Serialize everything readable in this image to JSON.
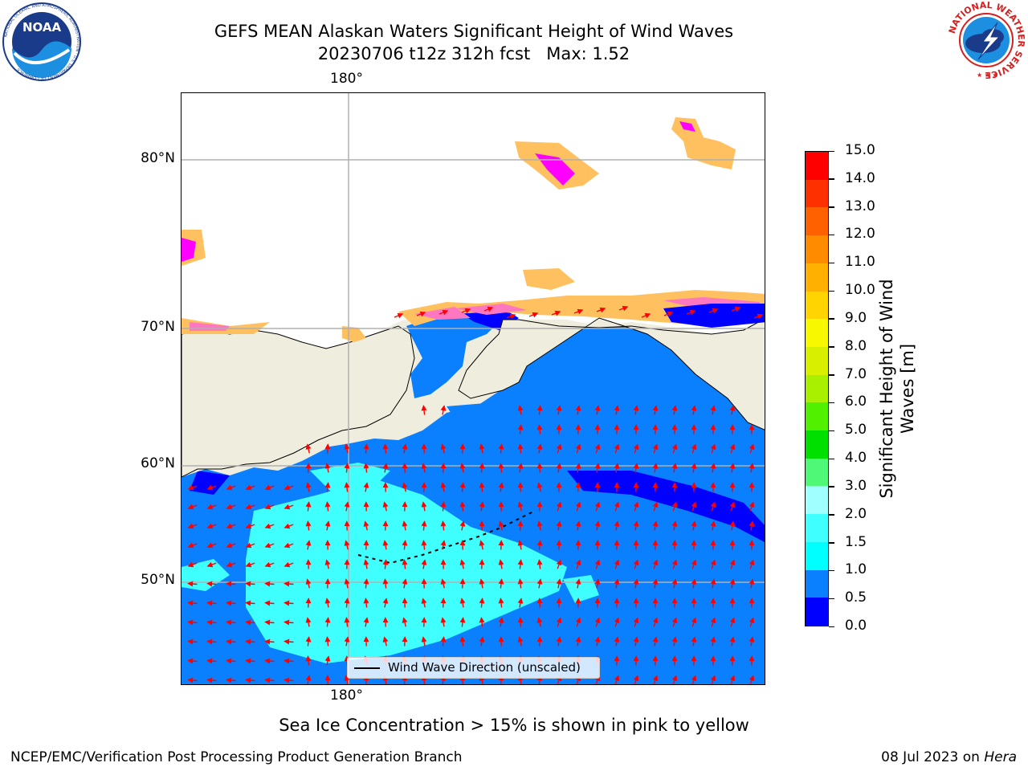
{
  "title": {
    "line1": "GEFS MEAN Alaskan Waters Significant Height of Wind Waves",
    "line2": "20230706 t12z 312h fcst   Max: 1.52"
  },
  "logos": {
    "left": {
      "name": "NOAA",
      "icon": "noaa-logo-icon",
      "wordmark": "NOAA",
      "ring_text": "NATIONAL OCEANIC AND ATMOSPHERIC ADMINISTRATION · U.S. DEPARTMENT OF COMMERCE"
    },
    "right": {
      "name": "National Weather Service",
      "icon": "nws-logo-icon",
      "ring_text": "NATIONAL WEATHER SERVICE"
    }
  },
  "map": {
    "top_lon_label": "180°",
    "bottom_lon_label": "180°",
    "lat_labels": [
      "80°N",
      "70°N",
      "60°N",
      "50°N"
    ],
    "land_color": "#efedde",
    "coastline_color": "#000000",
    "grid_color": "#b0b0b0",
    "arrow_color": "#ff0000",
    "grid": true
  },
  "legend": {
    "label": "Wind Wave Direction (unscaled)",
    "placement": "lower-center"
  },
  "colorbar": {
    "title_lines": [
      "Significant Height of Wind",
      "Waves [m]"
    ],
    "ticks": [
      "0.0",
      "0.5",
      "1.0",
      "1.5",
      "2.0",
      "3.0",
      "4.0",
      "5.0",
      "6.0",
      "7.0",
      "8.0",
      "9.0",
      "10.0",
      "11.0",
      "12.0",
      "13.0",
      "14.0",
      "15.0"
    ],
    "colors": [
      "#0000ff",
      "#0a80ff",
      "#00ffff",
      "#40ffff",
      "#a0ffff",
      "#50f878",
      "#00e000",
      "#50f000",
      "#a8f000",
      "#d8f000",
      "#f8f800",
      "#ffd400",
      "#ffb000",
      "#ff8c00",
      "#ff6000",
      "#ff3000",
      "#ff0000"
    ]
  },
  "caption": "Sea Ice Concentration > 15% is shown in pink to yellow",
  "footer": {
    "left": "NCEP/EMC/Verification Post Processing Product Generation Branch",
    "right_prefix": "08 Jul 2023 on ",
    "right_host": "Hera"
  }
}
